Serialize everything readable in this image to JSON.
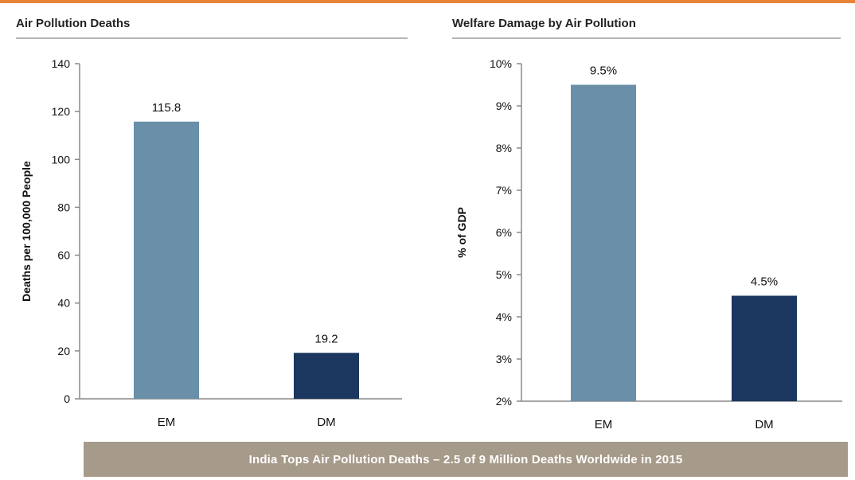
{
  "colors": {
    "accent_rule": "#e8843a",
    "em_bar": "#6a8fa8",
    "dm_bar": "#1b365f",
    "banner_bg": "#a69a8a"
  },
  "chart_data": [
    {
      "type": "bar",
      "title": "Air Pollution Deaths",
      "xlabel": "",
      "ylabel": "Deaths per 100,000 People",
      "categories": [
        "EM",
        "DM"
      ],
      "values": [
        115.8,
        19.2
      ],
      "data_labels": [
        "115.8",
        "19.2"
      ],
      "ylim": [
        0,
        140
      ],
      "yticks": [
        0,
        20,
        40,
        60,
        80,
        100,
        120,
        140
      ],
      "ytick_labels": [
        "0",
        "20",
        "40",
        "60",
        "80",
        "100",
        "120",
        "140"
      ],
      "grid": false,
      "legend": "none"
    },
    {
      "type": "bar",
      "title": "Welfare Damage by Air Pollution",
      "xlabel": "",
      "ylabel": "% of GDP",
      "categories": [
        "EM",
        "DM"
      ],
      "values": [
        9.5,
        4.5
      ],
      "data_labels": [
        "9.5%",
        "4.5%"
      ],
      "ylim": [
        2,
        10
      ],
      "yticks": [
        2,
        3,
        4,
        5,
        6,
        7,
        8,
        9,
        10
      ],
      "ytick_labels": [
        "2%",
        "3%",
        "4%",
        "5%",
        "6%",
        "7%",
        "8%",
        "9%",
        "10%"
      ],
      "grid": false,
      "legend": "none"
    }
  ],
  "banner": {
    "text": "India Tops Air Pollution Deaths – 2.5 of 9 Million Deaths Worldwide in 2015"
  }
}
